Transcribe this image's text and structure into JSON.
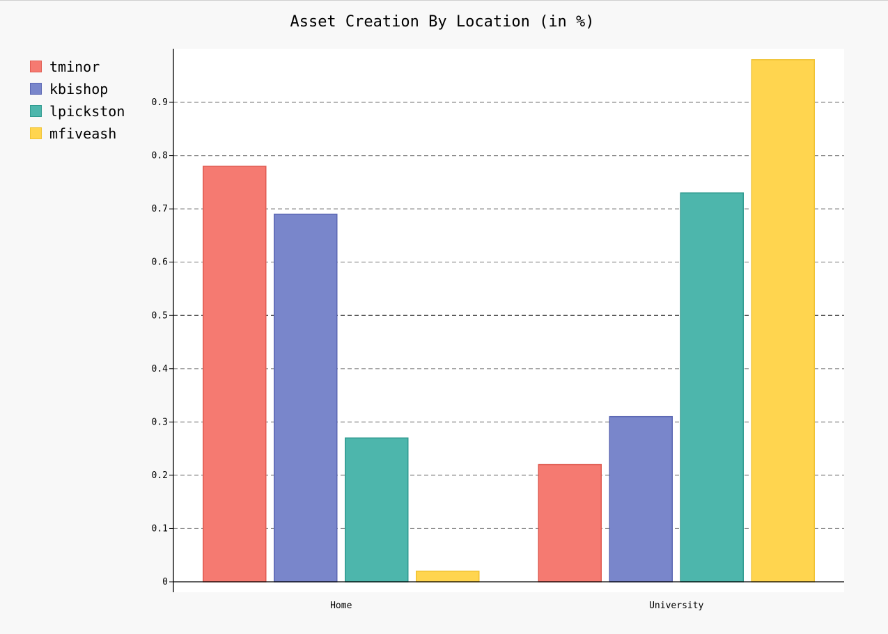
{
  "chart_data": {
    "type": "bar",
    "title": "Asset Creation By Location (in %)",
    "xlabel": "",
    "ylabel": "",
    "categories": [
      "Home",
      "University"
    ],
    "series": [
      {
        "name": "tminor",
        "color": "#F57A71",
        "border": "#e05a50",
        "values": [
          0.78,
          0.22
        ]
      },
      {
        "name": "kbishop",
        "color": "#7986CB",
        "border": "#5a66b3",
        "values": [
          0.69,
          0.31
        ]
      },
      {
        "name": "lpickston",
        "color": "#4DB6AC",
        "border": "#2f9a8f",
        "values": [
          0.27,
          0.73
        ]
      },
      {
        "name": "mfiveash",
        "color": "#FFD54F",
        "border": "#f0c232",
        "values": [
          0.02,
          0.98
        ]
      }
    ],
    "y_ticks": [
      "0",
      "0.1",
      "0.2",
      "0.3",
      "0.4",
      "0.5",
      "0.6",
      "0.7",
      "0.8",
      "0.9"
    ],
    "ylim": [
      0,
      0.98
    ],
    "grid": true,
    "legend_position": "top-left"
  }
}
